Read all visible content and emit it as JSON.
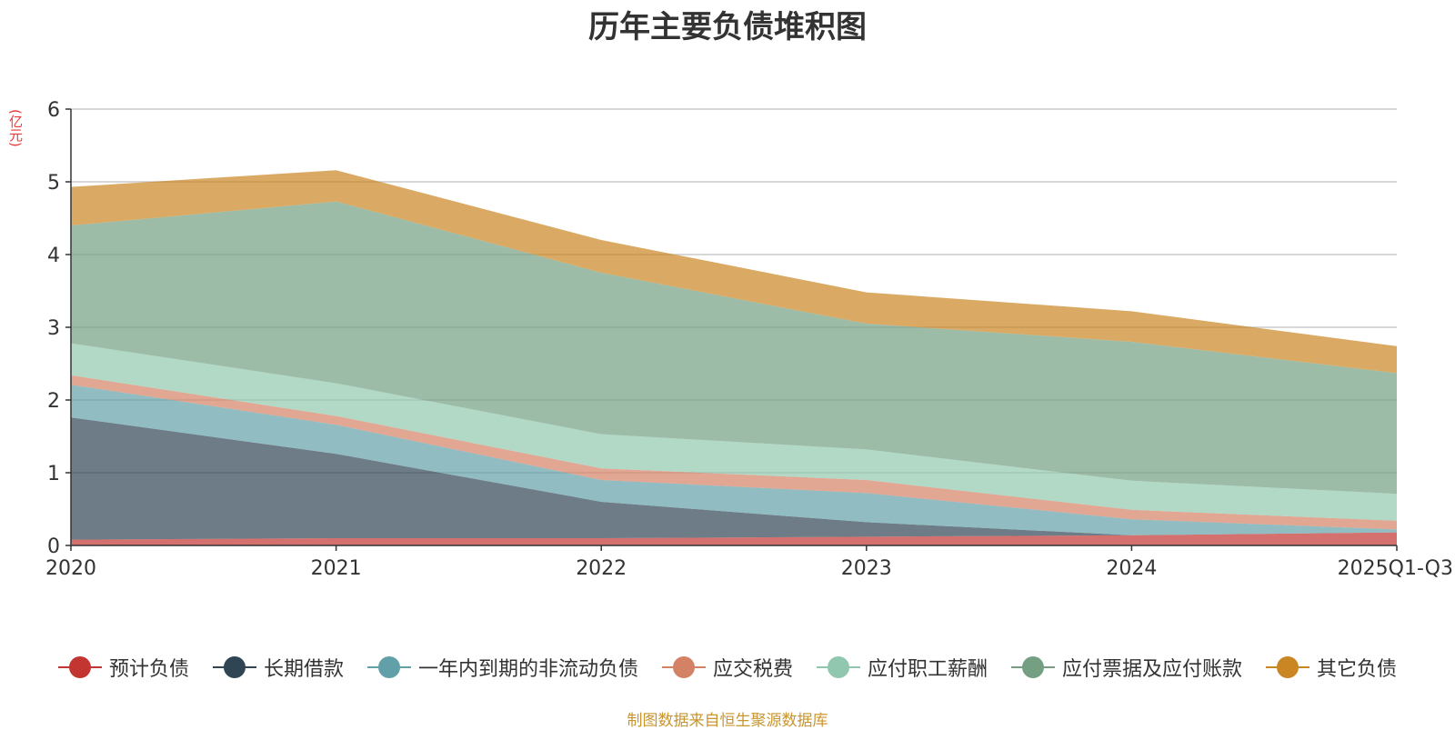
{
  "chart_data": {
    "type": "area",
    "stacked": true,
    "title": "历年主要负债堆积图",
    "unit": "(亿元)",
    "categories": [
      "2020",
      "2021",
      "2022",
      "2023",
      "2024",
      "2025Q1-Q3"
    ],
    "ylim": [
      0,
      6
    ],
    "yticks": [
      0,
      1,
      2,
      3,
      4,
      5,
      6
    ],
    "grid": true,
    "legend_position": "bottom",
    "series": [
      {
        "name": "预计负债",
        "color": "#c23531",
        "legend_color": "#c23531",
        "values": [
          0.08,
          0.1,
          0.1,
          0.12,
          0.14,
          0.18
        ]
      },
      {
        "name": "长期借款",
        "color": "#2f4554",
        "legend_color": "#2f4554",
        "values": [
          1.68,
          1.16,
          0.5,
          0.2,
          0.0,
          0.0
        ]
      },
      {
        "name": "一年内到期的非流动负债",
        "color": "#61a0a8",
        "legend_color": "#61a0a8",
        "values": [
          0.45,
          0.4,
          0.3,
          0.4,
          0.22,
          0.04
        ]
      },
      {
        "name": "应交税费",
        "color": "#d48265",
        "legend_color": "#d48265",
        "values": [
          0.13,
          0.12,
          0.16,
          0.18,
          0.13,
          0.12
        ]
      },
      {
        "name": "应付职工薪酬",
        "color": "#91c7ae",
        "legend_color": "#91c7ae",
        "values": [
          0.44,
          0.45,
          0.47,
          0.42,
          0.4,
          0.37
        ]
      },
      {
        "name": "应付票据及应付账款",
        "color": "#749f83",
        "legend_color": "#749f83",
        "values": [
          1.62,
          2.5,
          2.22,
          1.73,
          1.91,
          1.66
        ]
      },
      {
        "name": "其它负债",
        "color": "#ca8622",
        "legend_color": "#ca8622",
        "values": [
          0.53,
          0.43,
          0.45,
          0.43,
          0.42,
          0.37
        ]
      }
    ]
  },
  "source_note": "制图数据来自恒生聚源数据库"
}
